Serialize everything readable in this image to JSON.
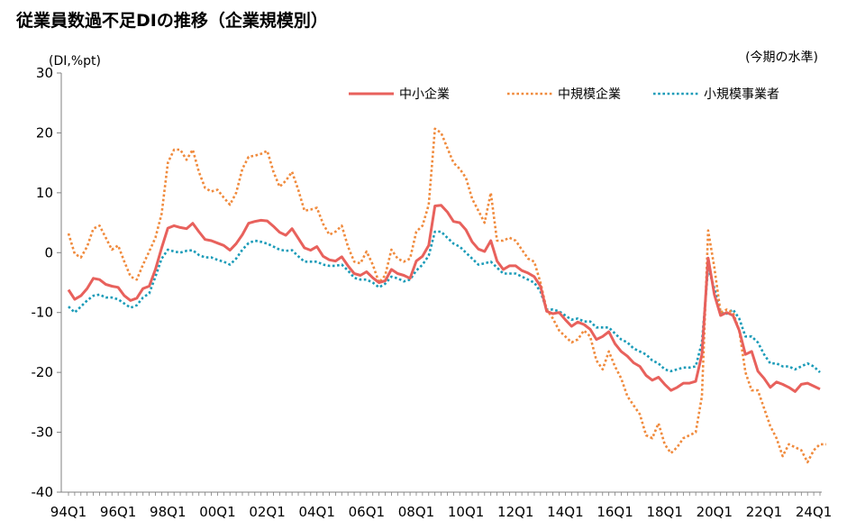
{
  "chart_data": {
    "type": "line",
    "title": "従業員数過不足DIの推移（企業規模別）",
    "y_unit_label": "(DI,%pt)",
    "note": "(今期の水準)",
    "ylim": [
      -40,
      30
    ],
    "yticks": [
      30,
      20,
      10,
      0,
      -10,
      -20,
      -30,
      -40
    ],
    "x_start": "1994Q1",
    "x_end": "2024Q4",
    "x_tick_labels": [
      "94Q1",
      "96Q1",
      "98Q1",
      "00Q1",
      "02Q1",
      "04Q1",
      "06Q1",
      "08Q1",
      "10Q1",
      "12Q1",
      "14Q1",
      "16Q1",
      "18Q1",
      "20Q1",
      "22Q1",
      "24Q1"
    ],
    "grid": false,
    "legend_position": "top-right",
    "series": [
      {
        "name": "中小企業",
        "color": "#e8615c",
        "style": "solid",
        "values": [
          -6.2,
          -7.8,
          -7.2,
          -6.0,
          -4.3,
          -4.5,
          -5.3,
          -5.6,
          -5.8,
          -7.2,
          -8.0,
          -7.6,
          -6.0,
          -5.6,
          -2.8,
          0.8,
          4.1,
          4.5,
          4.2,
          4.0,
          4.9,
          3.5,
          2.2,
          2.0,
          1.6,
          1.2,
          0.4,
          1.5,
          3.0,
          4.9,
          5.2,
          5.4,
          5.3,
          4.4,
          3.4,
          2.9,
          4.0,
          2.4,
          0.8,
          0.4,
          1.0,
          -0.6,
          -1.2,
          -1.4,
          -0.7,
          -2.2,
          -3.5,
          -3.8,
          -3.2,
          -4.2,
          -5.0,
          -4.7,
          -2.8,
          -3.5,
          -3.8,
          -4.3,
          -1.4,
          -0.6,
          1.2,
          7.8,
          7.9,
          6.8,
          5.2,
          5.0,
          3.8,
          1.8,
          0.6,
          0.2,
          2.0,
          -1.4,
          -2.8,
          -2.2,
          -2.2,
          -3.0,
          -3.4,
          -4.0,
          -5.6,
          -9.8,
          -10.2,
          -10.0,
          -11.2,
          -12.3,
          -11.6,
          -12.0,
          -12.8,
          -14.5,
          -14.0,
          -13.2,
          -15.2,
          -16.5,
          -17.3,
          -18.4,
          -19.0,
          -20.5,
          -21.3,
          -20.8,
          -22.0,
          -23.0,
          -22.5,
          -21.8,
          -21.8,
          -21.5,
          -17.0,
          -0.9,
          -7.0,
          -10.5,
          -10.0,
          -10.5,
          -13.0,
          -17.0,
          -16.5,
          -19.8,
          -21.0,
          -22.5,
          -21.6,
          -22.0,
          -22.5,
          -23.2,
          -22.0,
          -21.8,
          -22.3,
          -22.8
        ]
      },
      {
        "name": "中規模企業",
        "color": "#f08a3c",
        "style": "dotted",
        "values": [
          3.2,
          -0.2,
          -0.8,
          1.0,
          4.0,
          4.5,
          2.5,
          0.5,
          1.2,
          -1.5,
          -4.0,
          -4.5,
          -2.0,
          0.2,
          2.5,
          6.5,
          15.0,
          17.2,
          17.2,
          15.5,
          17.2,
          13.5,
          10.8,
          10.2,
          10.5,
          9.2,
          8.0,
          10.0,
          14.0,
          16.0,
          16.2,
          16.5,
          17.0,
          13.5,
          11.0,
          12.0,
          13.5,
          10.5,
          7.0,
          7.2,
          7.5,
          4.8,
          3.0,
          3.5,
          4.5,
          1.0,
          -1.5,
          -1.8,
          0.2,
          -2.0,
          -5.0,
          -3.8,
          0.5,
          -1.0,
          -1.5,
          -1.0,
          3.5,
          4.5,
          8.0,
          20.7,
          20.0,
          17.5,
          15.0,
          14.0,
          12.5,
          9.0,
          7.0,
          5.0,
          10.0,
          2.0,
          2.0,
          2.5,
          2.0,
          0.5,
          -1.0,
          -1.5,
          -5.0,
          -9.5,
          -11.0,
          -13.0,
          -14.0,
          -15.0,
          -14.5,
          -13.0,
          -14.0,
          -18.0,
          -19.5,
          -16.5,
          -19.0,
          -21.0,
          -24.0,
          -25.5,
          -27.0,
          -30.5,
          -31.0,
          -28.5,
          -32.0,
          -33.5,
          -32.5,
          -31.0,
          -30.5,
          -30.0,
          -24.0,
          3.7,
          -2.5,
          -10.0,
          -9.5,
          -10.0,
          -13.0,
          -20.0,
          -23.0,
          -23.0,
          -26.0,
          -29.0,
          -31.0,
          -34.0,
          -32.0,
          -32.5,
          -33.0,
          -35.0,
          -33.0,
          -32.0,
          -32.0
        ]
      },
      {
        "name": "小規模事業者",
        "color": "#1a9bb8",
        "style": "dotted",
        "values": [
          -9.0,
          -10.0,
          -9.0,
          -8.0,
          -7.2,
          -7.0,
          -7.5,
          -7.5,
          -7.8,
          -8.5,
          -9.2,
          -8.8,
          -7.5,
          -6.8,
          -4.0,
          -1.0,
          0.5,
          0.2,
          0.0,
          0.3,
          0.4,
          -0.4,
          -0.8,
          -0.8,
          -1.2,
          -1.5,
          -2.0,
          -1.0,
          0.5,
          1.6,
          2.0,
          1.8,
          1.5,
          1.0,
          0.5,
          0.3,
          0.4,
          -0.6,
          -1.5,
          -1.5,
          -1.5,
          -2.0,
          -2.2,
          -2.2,
          -2.0,
          -3.0,
          -4.2,
          -4.5,
          -4.5,
          -5.0,
          -5.8,
          -5.2,
          -4.0,
          -4.3,
          -4.8,
          -4.5,
          -3.0,
          -2.0,
          -0.5,
          3.5,
          3.5,
          2.5,
          1.5,
          1.0,
          0.0,
          -1.0,
          -2.0,
          -1.8,
          -1.5,
          -2.5,
          -3.5,
          -3.5,
          -3.5,
          -4.0,
          -4.5,
          -5.0,
          -6.5,
          -9.5,
          -9.5,
          -9.8,
          -10.5,
          -11.2,
          -11.0,
          -11.5,
          -11.5,
          -12.5,
          -12.5,
          -12.5,
          -13.5,
          -14.5,
          -15.0,
          -16.0,
          -16.5,
          -17.0,
          -18.0,
          -18.5,
          -19.5,
          -19.8,
          -19.5,
          -19.2,
          -19.2,
          -19.0,
          -15.0,
          -2.5,
          -6.0,
          -10.0,
          -10.2,
          -9.5,
          -11.0,
          -14.0,
          -14.0,
          -15.0,
          -17.0,
          -18.5,
          -18.5,
          -19.0,
          -19.0,
          -19.5,
          -19.0,
          -18.5,
          -19.0,
          -20.0
        ]
      }
    ]
  }
}
